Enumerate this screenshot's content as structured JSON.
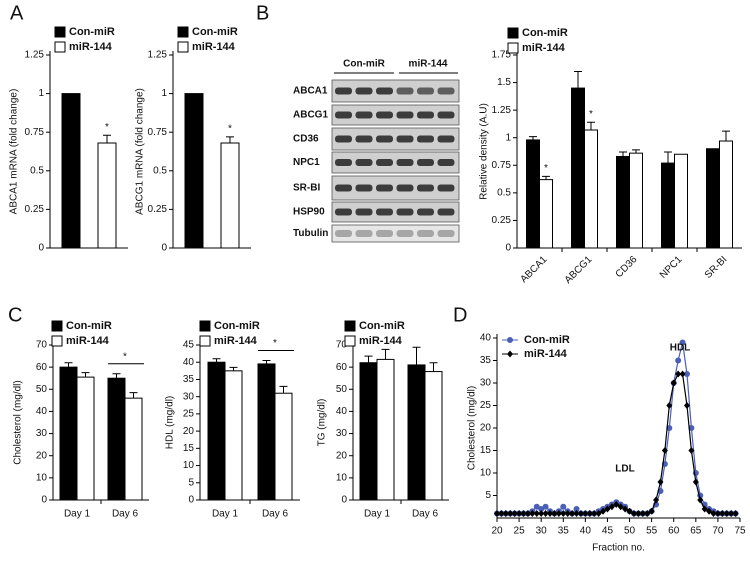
{
  "panel_labels": [
    "A",
    "B",
    "C",
    "D"
  ],
  "blot": {
    "group_labels": [
      "Con-miR",
      "miR-144"
    ],
    "proteins": [
      "ABCA1",
      "ABCG1",
      "CD36",
      "NPC1",
      "SR-BI",
      "HSP90",
      "Tubulin"
    ]
  },
  "chart_data": [
    {
      "type": "bar",
      "y_label": "ABCA1 mRNA (fold change)",
      "categories": [
        null
      ],
      "series": [
        {
          "name": "Con-miR",
          "color": "#000000",
          "values": [
            1
          ]
        },
        {
          "name": "miR-144",
          "color": "#ffffff",
          "values": [
            0.68
          ],
          "errors": [
            0.05
          ],
          "stars": [
            "*"
          ]
        }
      ],
      "ylim": [
        0,
        1.25
      ],
      "yticks": [
        0,
        0.25,
        0.5,
        0.75,
        1,
        1.25
      ]
    },
    {
      "type": "bar",
      "y_label": "ABCG1 mRNA (fold change)",
      "categories": [
        null
      ],
      "series": [
        {
          "name": "Con-miR",
          "color": "#000000",
          "values": [
            1
          ]
        },
        {
          "name": "miR-144",
          "color": "#ffffff",
          "values": [
            0.68
          ],
          "errors": [
            0.04
          ],
          "stars": [
            "*"
          ]
        }
      ],
      "ylim": [
        0,
        1.25
      ],
      "yticks": [
        0,
        0.25,
        0.5,
        0.75,
        1,
        1.25
      ]
    },
    {
      "type": "bar",
      "y_label": "Relative density (A.U)",
      "categories": [
        "ABCA1",
        "ABCG1",
        "CD36",
        "NPC1",
        "SR-BI"
      ],
      "series": [
        {
          "name": "Con-miR",
          "color": "#000000",
          "values": [
            0.98,
            1.45,
            0.83,
            0.77,
            0.9
          ],
          "errors": [
            0.03,
            0.15,
            0.04,
            0.1,
            null
          ]
        },
        {
          "name": "miR-144",
          "color": "#ffffff",
          "values": [
            0.62,
            1.07,
            0.86,
            0.85,
            0.97
          ],
          "errors": [
            0.03,
            0.07,
            0.03,
            null,
            0.09
          ],
          "stars": [
            "*",
            "*",
            null,
            null,
            null
          ]
        }
      ],
      "ylim": [
        0,
        1.75
      ],
      "yticks": [
        0,
        0.25,
        0.5,
        0.75,
        1,
        1.25,
        1.5,
        1.75
      ]
    },
    {
      "type": "bar",
      "y_label": "Cholesterol (mg/dl)",
      "categories": [
        "Day 1",
        "Day 6"
      ],
      "series": [
        {
          "name": "Con-miR",
          "color": "#000000",
          "values": [
            60,
            55
          ],
          "errors": [
            2,
            2
          ]
        },
        {
          "name": "miR-144",
          "color": "#ffffff",
          "values": [
            55.5,
            46
          ],
          "errors": [
            2,
            2.5
          ]
        }
      ],
      "bracket_stars": [
        null,
        "*"
      ],
      "ylim": [
        0,
        70
      ],
      "yticks": [
        0,
        10,
        20,
        30,
        40,
        50,
        60,
        70
      ]
    },
    {
      "type": "bar",
      "y_label": "HDL (mg/dl)",
      "categories": [
        "Day 1",
        "Day 6"
      ],
      "series": [
        {
          "name": "Con-miR",
          "color": "#000000",
          "values": [
            40,
            39.5
          ],
          "errors": [
            1,
            1
          ]
        },
        {
          "name": "miR-144",
          "color": "#ffffff",
          "values": [
            37.5,
            31
          ],
          "errors": [
            1,
            2
          ]
        }
      ],
      "bracket_stars": [
        null,
        "*"
      ],
      "ylim": [
        0,
        45
      ],
      "yticks": [
        0,
        5,
        10,
        15,
        20,
        25,
        30,
        35,
        40,
        45
      ]
    },
    {
      "type": "bar",
      "y_label": "TG (mg/dl)",
      "categories": [
        "Day 1",
        "Day 6"
      ],
      "series": [
        {
          "name": "Con-miR",
          "color": "#000000",
          "values": [
            62,
            61
          ],
          "errors": [
            3,
            8
          ]
        },
        {
          "name": "miR-144",
          "color": "#ffffff",
          "values": [
            63.5,
            58
          ],
          "errors": [
            4.5,
            4
          ]
        }
      ],
      "ylim": [
        0,
        70
      ],
      "yticks": [
        0,
        10,
        20,
        30,
        40,
        50,
        60,
        70
      ]
    },
    {
      "type": "line",
      "y_label": "Cholesterol (mg/dl)",
      "x_label": "Fraction no.",
      "peak_labels": [
        "LDL",
        "HDL"
      ],
      "x": [
        20,
        21,
        22,
        23,
        24,
        25,
        26,
        27,
        28,
        29,
        30,
        31,
        32,
        33,
        34,
        35,
        36,
        37,
        38,
        39,
        40,
        41,
        42,
        43,
        44,
        45,
        46,
        47,
        48,
        49,
        50,
        51,
        52,
        53,
        54,
        55,
        56,
        57,
        58,
        59,
        60,
        61,
        62,
        63,
        64,
        65,
        66,
        67,
        68,
        69,
        70,
        71,
        72,
        73,
        74
      ],
      "series": [
        {
          "name": "Con-miR",
          "color": "#4a5fb5",
          "marker": "circle",
          "values": [
            1,
            1,
            1,
            1,
            1,
            1,
            1,
            1,
            1.5,
            2.5,
            2,
            2.5,
            1.5,
            1,
            1.5,
            2.5,
            1.5,
            1,
            2,
            1,
            1,
            1,
            1,
            1.5,
            2,
            2.5,
            3,
            3.5,
            3,
            2.5,
            1.5,
            1,
            1,
            1,
            1,
            1.5,
            3,
            6,
            12,
            20,
            30,
            35,
            39,
            32,
            20,
            10,
            5,
            3,
            2,
            1.5,
            1,
            1,
            1,
            1,
            1
          ]
        },
        {
          "name": "miR-144",
          "color": "#000000",
          "marker": "diamond",
          "values": [
            1,
            1,
            1,
            1,
            1,
            1,
            1,
            1,
            1,
            1,
            1,
            1,
            1,
            1,
            1,
            1,
            1,
            1,
            1,
            1,
            1,
            1,
            1,
            1,
            1.5,
            2,
            2.5,
            3,
            2.5,
            2,
            1.5,
            1,
            1,
            1,
            1,
            1.5,
            4,
            8,
            15,
            25,
            30,
            32,
            32,
            25,
            15,
            8,
            4,
            2,
            1.5,
            1,
            1,
            1,
            1,
            1,
            1
          ]
        }
      ],
      "xlim": [
        20,
        75
      ],
      "xticks": [
        20,
        25,
        30,
        35,
        40,
        45,
        50,
        55,
        60,
        65,
        70,
        75
      ],
      "ylim": [
        0,
        40
      ],
      "yticks": [
        5,
        10,
        15,
        20,
        25,
        30,
        35,
        40
      ]
    }
  ]
}
